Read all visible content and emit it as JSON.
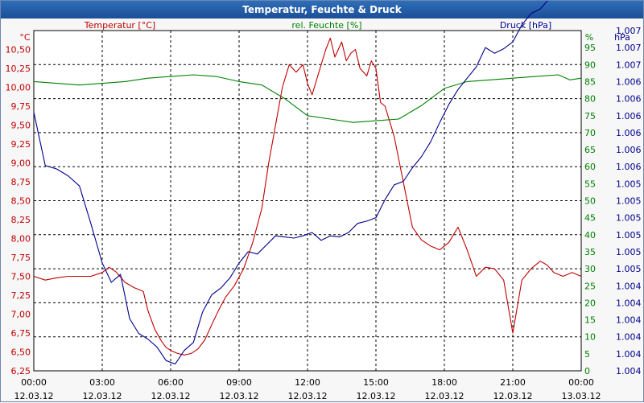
{
  "window": {
    "title": "Temperatur, Feuchte & Druck"
  },
  "chart_data": {
    "type": "line",
    "title": "Temperatur, Feuchte & Druck",
    "grid": true,
    "x": {
      "ticks": [
        {
          "time": "00:00",
          "date": "12.03.12"
        },
        {
          "time": "03:00",
          "date": "12.03.12"
        },
        {
          "time": "06:00",
          "date": "12.03.12"
        },
        {
          "time": "09:00",
          "date": "12.03.12"
        },
        {
          "time": "12:00",
          "date": "12.03.12"
        },
        {
          "time": "15:00",
          "date": "12.03.12"
        },
        {
          "time": "18:00",
          "date": "12.03.12"
        },
        {
          "time": "21:00",
          "date": "12.03.12"
        },
        {
          "time": "00:00",
          "date": "13.03.12"
        }
      ]
    },
    "axes": {
      "temperature": {
        "label": "Temperatur [°C]",
        "unit": "°C",
        "color": "#c00000",
        "ylim": [
          6.25,
          10.75
        ],
        "tick_labels": [
          "6,25",
          "6,50",
          "6,75",
          "7,00",
          "7,25",
          "7,50",
          "7,75",
          "8,00",
          "8,25",
          "8,50",
          "8,75",
          "9,00",
          "9,25",
          "9,50",
          "9,75",
          "10,00",
          "10,25",
          "10,50"
        ]
      },
      "humidity": {
        "label": "rel. Feuchte [%]",
        "unit": "%",
        "color": "#008000",
        "ylim": [
          0,
          100
        ],
        "tick_labels": [
          "0",
          "5",
          "10",
          "15",
          "20",
          "25",
          "30",
          "35",
          "40",
          "45",
          "50",
          "55",
          "60",
          "65",
          "70",
          "75",
          "80",
          "85",
          "90",
          "95"
        ]
      },
      "pressure": {
        "label": "Druck [hPa]",
        "unit": "hPa",
        "color": "#00008b",
        "ylim": [
          1.004,
          1.007
        ],
        "tick_labels": [
          "1.004",
          "1.004",
          "1.004",
          "1.004",
          "1.004",
          "1.004",
          "1.005",
          "1.005",
          "1.005",
          "1.005",
          "1.005",
          "1.005",
          "1.006",
          "1.006",
          "1.006",
          "1.006",
          "1.006",
          "1.006",
          "1.007",
          "1.007",
          "1.007"
        ]
      }
    },
    "series": [
      {
        "name": "Temperatur [°C]",
        "axis": "temperature",
        "x_hours": [
          0,
          0.5,
          1,
          1.5,
          2,
          2.5,
          3,
          3.3,
          3.6,
          4,
          4.4,
          4.8,
          5,
          5.3,
          5.6,
          5.8,
          6,
          6.3,
          6.6,
          6.9,
          7.2,
          7.5,
          7.8,
          8.1,
          8.4,
          8.8,
          9.2,
          9.6,
          10,
          10.3,
          10.6,
          10.9,
          11.2,
          11.5,
          11.8,
          12,
          12.2,
          12.4,
          12.6,
          12.8,
          13,
          13.2,
          13.5,
          13.7,
          13.9,
          14.1,
          14.3,
          14.6,
          14.8,
          15,
          15.2,
          15.4,
          15.6,
          15.8,
          16,
          16.3,
          16.6,
          17,
          17.4,
          17.8,
          18.2,
          18.6,
          19,
          19.4,
          19.8,
          20.2,
          20.6,
          21,
          21.4,
          21.8,
          22.2,
          22.5,
          22.8,
          23.2,
          23.6,
          24
        ],
        "values": [
          7.5,
          7.45,
          7.48,
          7.5,
          7.5,
          7.5,
          7.55,
          7.62,
          7.56,
          7.42,
          7.35,
          7.3,
          7.05,
          6.8,
          6.64,
          6.56,
          6.52,
          6.48,
          6.46,
          6.48,
          6.54,
          6.66,
          6.86,
          7.05,
          7.22,
          7.38,
          7.6,
          7.95,
          8.4,
          9.0,
          9.5,
          10.0,
          10.3,
          10.2,
          10.3,
          10.05,
          9.9,
          10.1,
          10.3,
          10.5,
          10.65,
          10.4,
          10.6,
          10.35,
          10.45,
          10.5,
          10.25,
          10.15,
          10.35,
          10.25,
          9.8,
          9.75,
          9.55,
          9.35,
          9.05,
          8.6,
          8.15,
          7.98,
          7.9,
          7.85,
          7.95,
          8.15,
          7.85,
          7.5,
          7.62,
          7.6,
          7.45,
          6.75,
          7.45,
          7.6,
          7.7,
          7.65,
          7.55,
          7.5,
          7.55,
          7.5
        ],
        "color": "#c00000"
      },
      {
        "name": "rel. Feuchte [%]",
        "axis": "humidity",
        "x_hours": [
          0,
          1,
          2,
          3,
          4,
          5,
          6,
          7,
          8,
          9,
          10,
          11,
          12,
          13,
          14,
          15,
          16,
          17,
          18,
          19,
          20,
          21,
          22,
          23,
          23.5,
          24
        ],
        "values": [
          85,
          84.5,
          84,
          84.5,
          85,
          86,
          86.5,
          87,
          86.5,
          85,
          84,
          80,
          75,
          74,
          73,
          73.5,
          74,
          78,
          83,
          85,
          85.5,
          86,
          86.5,
          87,
          85.5,
          86
        ],
        "color": "#008000"
      },
      {
        "name": "Druck [hPa]",
        "axis": "pressure",
        "x_hours": [
          0,
          0.5,
          1,
          1.5,
          2,
          2.5,
          3,
          3.4,
          3.8,
          4.2,
          4.6,
          5,
          5.4,
          5.8,
          6.2,
          6.6,
          7,
          7.4,
          7.8,
          8.2,
          8.6,
          9,
          9.4,
          9.8,
          10.2,
          10.6,
          11,
          11.4,
          11.8,
          12.2,
          12.6,
          13,
          13.4,
          13.8,
          14.2,
          14.6,
          15,
          15.4,
          15.8,
          16.2,
          16.6,
          17,
          17.4,
          17.8,
          18.2,
          18.6,
          19,
          19.4,
          19.8,
          20.2,
          20.6,
          21,
          21.4,
          21.8,
          22.2,
          22.6,
          23,
          23.4,
          23.8,
          24
        ],
        "values": [
          1.00628,
          1.00581,
          1.00578,
          1.00572,
          1.00563,
          1.0053,
          1.00495,
          1.00478,
          1.00485,
          1.00446,
          1.00433,
          1.00428,
          1.00421,
          1.00409,
          1.00406,
          1.00418,
          1.00425,
          1.00452,
          1.00467,
          1.00473,
          1.00482,
          1.00495,
          1.00505,
          1.00503,
          1.00511,
          1.00519,
          1.00518,
          1.00517,
          1.00519,
          1.00522,
          1.00515,
          1.00519,
          1.00518,
          1.00522,
          1.0053,
          1.00532,
          1.00535,
          1.00551,
          1.00564,
          1.00567,
          1.00579,
          1.00589,
          1.00602,
          1.00619,
          1.00635,
          1.00648,
          1.00658,
          1.00668,
          1.00685,
          1.0068,
          1.00684,
          1.0069,
          1.00705,
          1.00715,
          1.00719,
          1.00728,
          1.00735,
          1.00745,
          1.00752,
          1.00757
        ],
        "color": "#00008b"
      }
    ]
  }
}
